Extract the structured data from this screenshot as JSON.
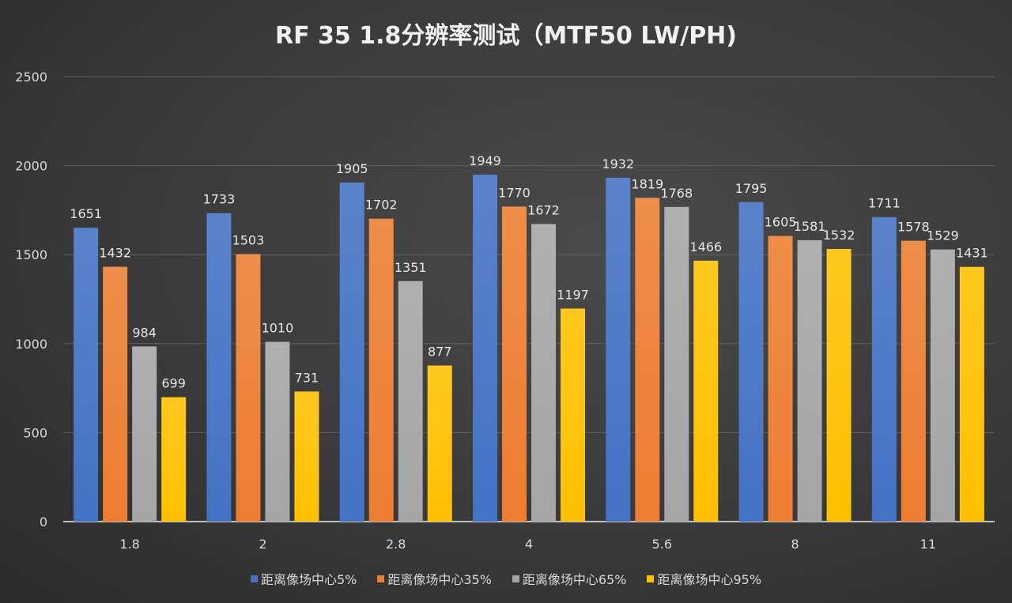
{
  "chart_data": {
    "type": "bar",
    "title": "RF 35 1.8分辨率测试（MTF50 LW/PH)",
    "xlabel": "",
    "ylabel": "",
    "ylim": [
      0,
      2500
    ],
    "yticks": [
      "0",
      "500",
      "1000",
      "1500",
      "2000",
      "2500"
    ],
    "grid": true,
    "legend_position": "bottom",
    "categories": [
      "1.8",
      "2",
      "2.8",
      "4",
      "5.6",
      "8",
      "11"
    ],
    "series": [
      {
        "name": "距离像场中心5%",
        "color": "#4472c4",
        "values": [
          1651,
          1733,
          1905,
          1949,
          1932,
          1795,
          1711
        ]
      },
      {
        "name": "距离像场中心35%",
        "color": "#ed7d31",
        "values": [
          1432,
          1503,
          1702,
          1770,
          1819,
          1605,
          1578
        ]
      },
      {
        "name": "距离像场中心65%",
        "color": "#a5a5a5",
        "values": [
          984,
          1010,
          1351,
          1672,
          1768,
          1581,
          1529
        ]
      },
      {
        "name": "距离像场中心95%",
        "color": "#ffc000",
        "values": [
          699,
          731,
          877,
          1197,
          1466,
          1532,
          1431
        ]
      }
    ]
  }
}
